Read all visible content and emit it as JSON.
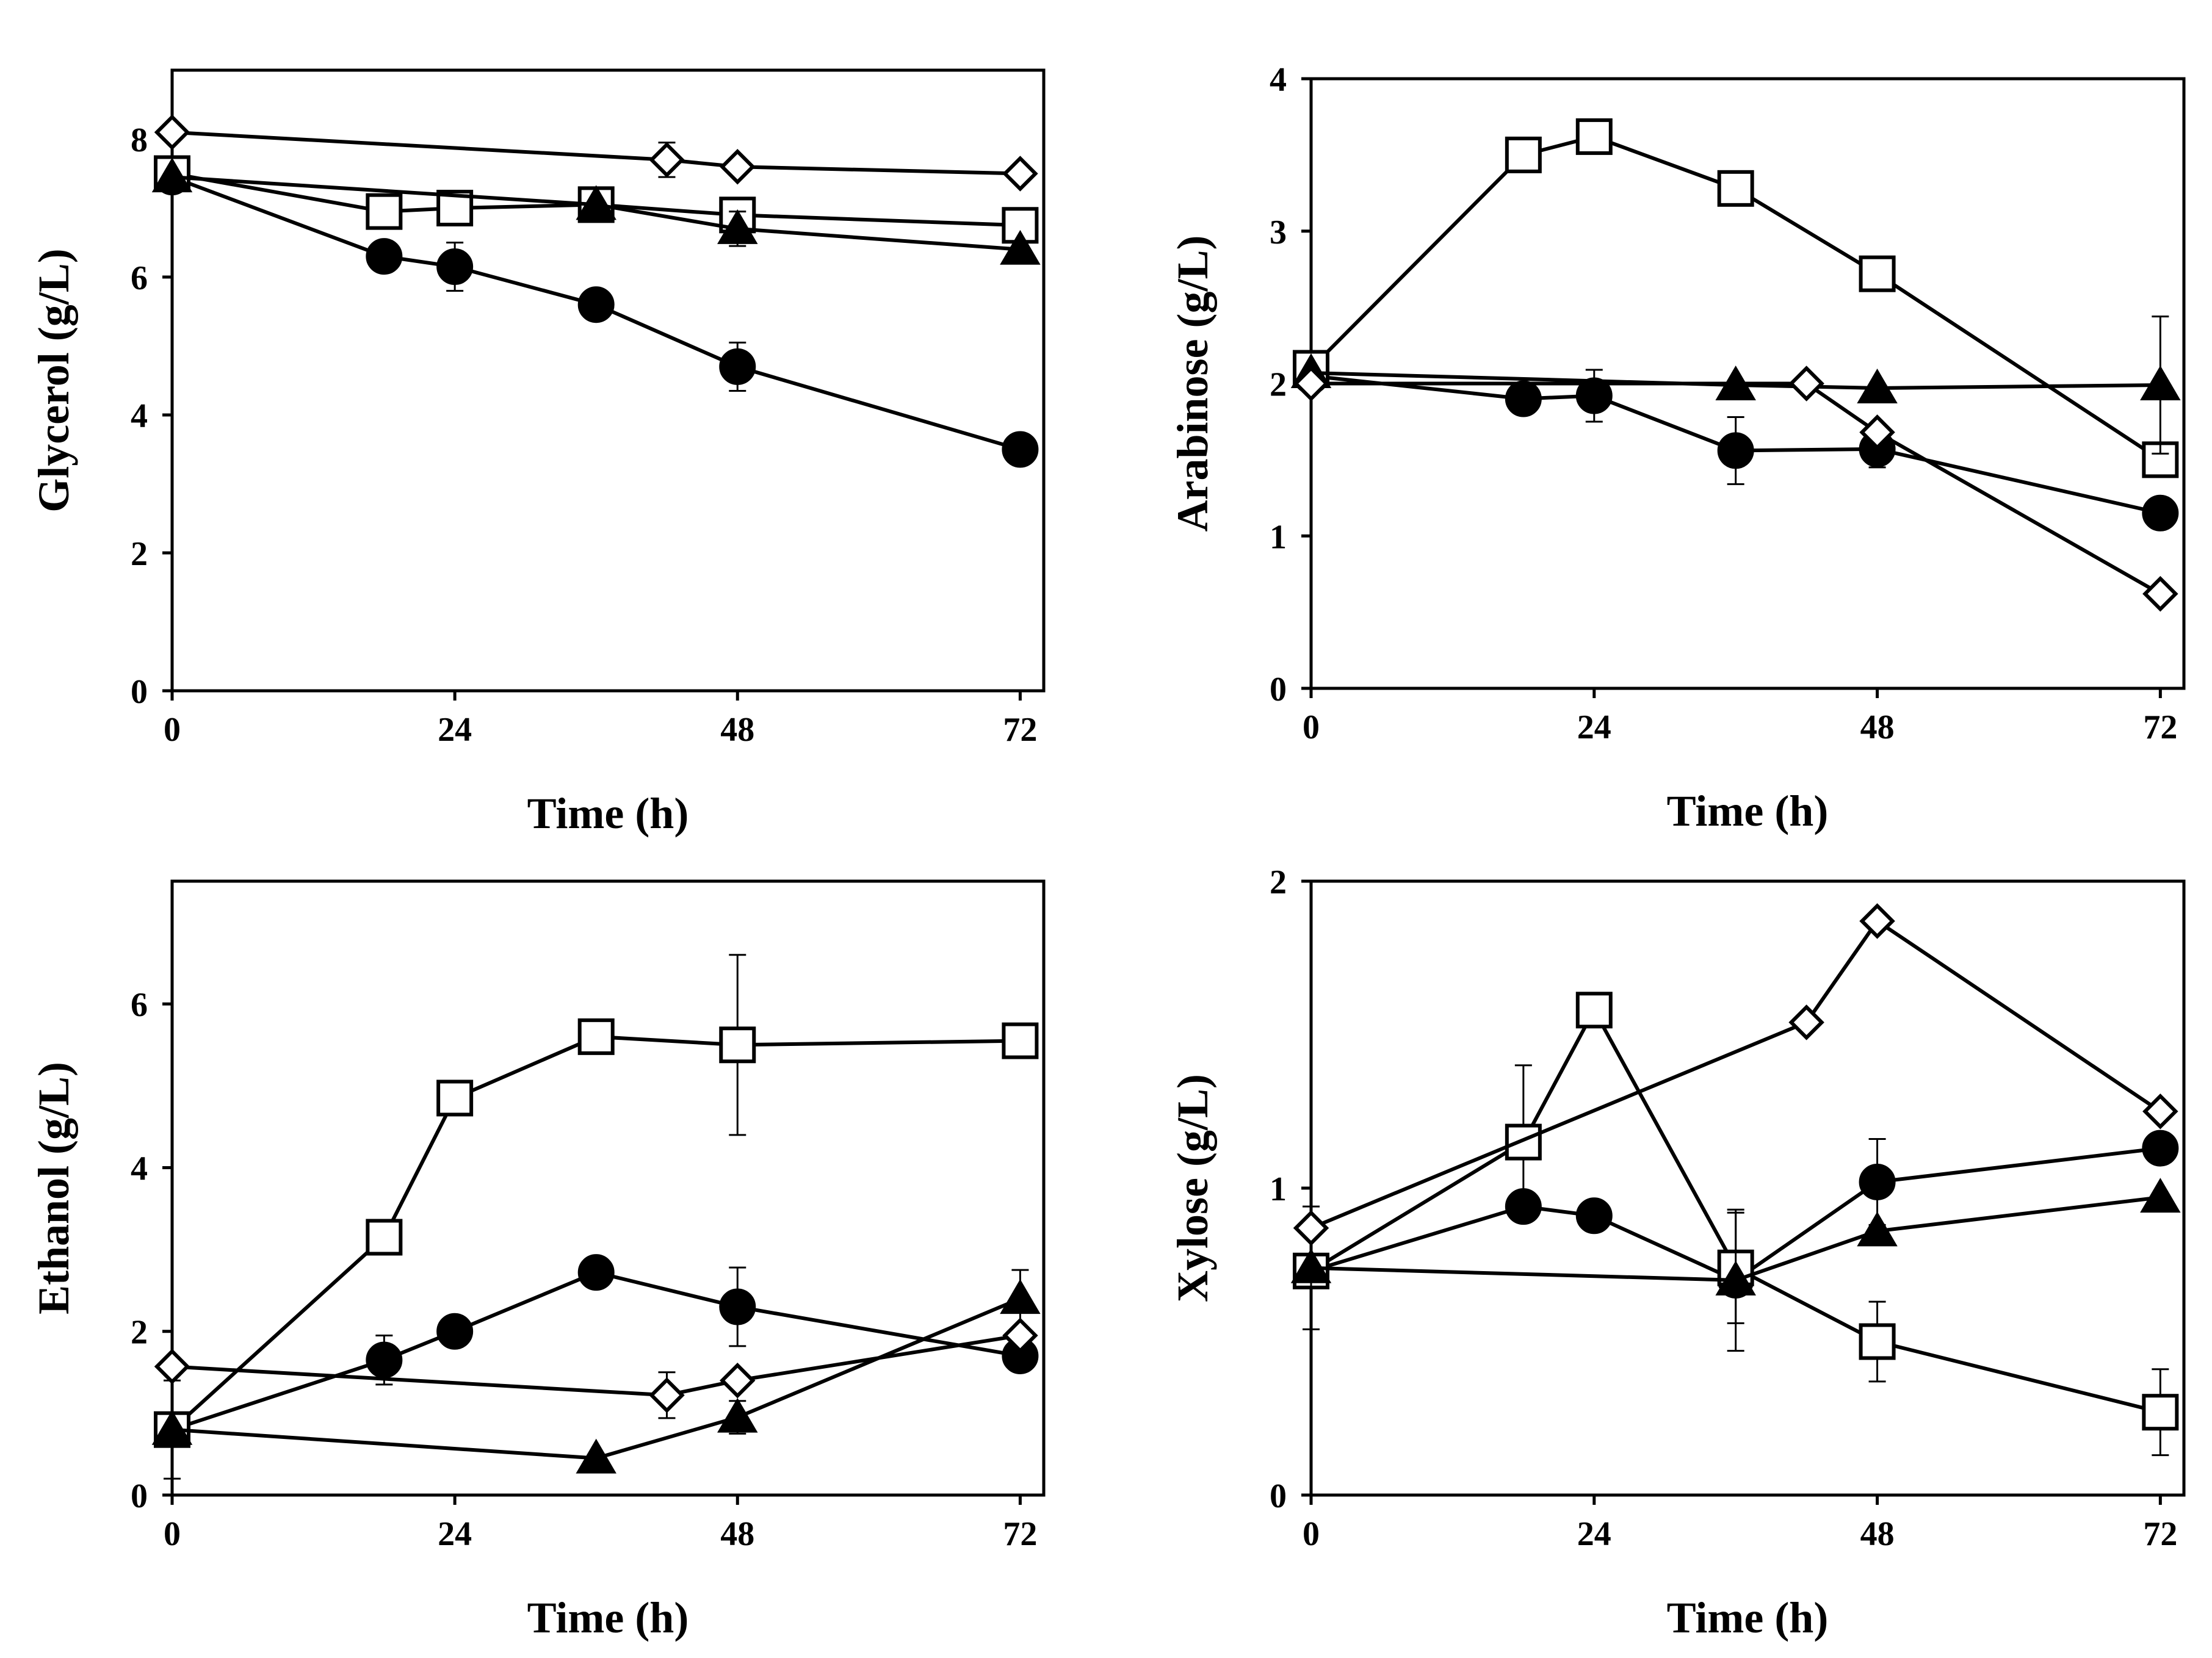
{
  "chart_data": [
    {
      "id": "glycerol",
      "type": "line",
      "xlabel": "Time (h)",
      "ylabel": "Glycerol (g/L)",
      "xlim": [
        0,
        74
      ],
      "ylim": [
        0,
        9
      ],
      "xticks": [
        0,
        24,
        48,
        72
      ],
      "yticks": [
        0,
        2,
        4,
        6,
        8
      ],
      "grid": false,
      "series": [
        {
          "marker": "circle",
          "x": [
            0,
            18,
            24,
            36,
            48,
            72
          ],
          "y": [
            7.45,
            6.3,
            6.15,
            5.6,
            4.7,
            3.5
          ],
          "err": [
            0,
            0.15,
            0.35,
            0,
            0.35,
            0
          ]
        },
        {
          "marker": "square",
          "x": [
            0,
            18,
            24,
            36,
            48,
            72
          ],
          "y": [
            7.5,
            6.95,
            7.0,
            7.05,
            6.9,
            6.75
          ],
          "err": [
            0,
            0,
            0,
            0,
            0.2,
            0
          ]
        },
        {
          "marker": "triangle",
          "x": [
            0,
            36,
            48,
            72
          ],
          "y": [
            7.45,
            7.05,
            6.7,
            6.4
          ],
          "err": [
            0,
            0,
            0.25,
            0
          ]
        },
        {
          "marker": "diamond",
          "x": [
            0,
            42,
            48,
            72
          ],
          "y": [
            8.1,
            7.7,
            7.6,
            7.5
          ],
          "err": [
            0,
            0.25,
            0,
            0
          ]
        }
      ]
    },
    {
      "id": "arabinose",
      "type": "line",
      "xlabel": "Time (h)",
      "ylabel": "Arabinose (g/L)",
      "xlim": [
        0,
        74
      ],
      "ylim": [
        0,
        4
      ],
      "xticks": [
        0,
        24,
        48,
        72
      ],
      "yticks": [
        0,
        1,
        2,
        3,
        4
      ],
      "grid": false,
      "series": [
        {
          "marker": "circle",
          "x": [
            0,
            18,
            24,
            36,
            48,
            72
          ],
          "y": [
            2.05,
            1.9,
            1.92,
            1.56,
            1.57,
            1.15
          ],
          "err": [
            0,
            0,
            0.17,
            0.22,
            0.12,
            0
          ]
        },
        {
          "marker": "square",
          "x": [
            0,
            18,
            24,
            36,
            48,
            72
          ],
          "y": [
            2.1,
            3.5,
            3.62,
            3.28,
            2.72,
            1.5
          ],
          "err": [
            0,
            0,
            0,
            0,
            0,
            0
          ]
        },
        {
          "marker": "triangle",
          "x": [
            0,
            36,
            48,
            72
          ],
          "y": [
            2.07,
            1.99,
            1.97,
            1.99
          ],
          "err": [
            0,
            0,
            0,
            0.45
          ]
        },
        {
          "marker": "diamond",
          "x": [
            0,
            42,
            48,
            72
          ],
          "y": [
            2.0,
            2.0,
            1.68,
            0.62
          ],
          "err": [
            0,
            0,
            0,
            0
          ]
        }
      ]
    },
    {
      "id": "ethanol",
      "type": "line",
      "xlabel": "Time (h)",
      "ylabel": "Ethanol (g/L)",
      "xlim": [
        0,
        74
      ],
      "ylim": [
        0,
        7.5
      ],
      "xticks": [
        0,
        24,
        48,
        72
      ],
      "yticks": [
        0,
        2,
        4,
        6
      ],
      "grid": false,
      "series": [
        {
          "marker": "circle",
          "x": [
            0,
            18,
            24,
            36,
            48,
            72
          ],
          "y": [
            0.8,
            1.65,
            2.0,
            2.72,
            2.3,
            1.7
          ],
          "err": [
            0,
            0.3,
            0,
            0,
            0.48,
            0
          ]
        },
        {
          "marker": "square",
          "x": [
            0,
            18,
            24,
            36,
            48,
            72
          ],
          "y": [
            0.8,
            3.15,
            4.85,
            5.6,
            5.5,
            5.55
          ],
          "err": [
            0.6,
            0,
            0,
            0,
            1.1,
            0
          ]
        },
        {
          "marker": "triangle",
          "x": [
            0,
            36,
            48,
            72
          ],
          "y": [
            0.8,
            0.45,
            0.95,
            2.4
          ],
          "err": [
            0,
            0,
            0.2,
            0.35
          ]
        },
        {
          "marker": "diamond",
          "x": [
            0,
            42,
            48,
            72
          ],
          "y": [
            1.57,
            1.22,
            1.4,
            1.95
          ],
          "err": [
            0,
            0.28,
            0,
            0
          ]
        }
      ]
    },
    {
      "id": "xylose",
      "type": "line",
      "xlabel": "Time (h)",
      "ylabel": "Xylose (g/L)",
      "xlim": [
        0,
        74
      ],
      "ylim": [
        0,
        2
      ],
      "xticks": [
        0,
        24,
        48,
        72
      ],
      "yticks": [
        0,
        1,
        2
      ],
      "grid": false,
      "series": [
        {
          "marker": "circle",
          "x": [
            0,
            18,
            24,
            36,
            48,
            72
          ],
          "y": [
            0.73,
            0.94,
            0.91,
            0.7,
            1.02,
            1.13
          ],
          "err": [
            0,
            0,
            0,
            0,
            0.14,
            0
          ]
        },
        {
          "marker": "square",
          "x": [
            0,
            18,
            24,
            36,
            48,
            72
          ],
          "y": [
            0.73,
            1.15,
            1.58,
            0.74,
            0.5,
            0.27
          ],
          "err": [
            0,
            0.25,
            0,
            0.18,
            0.13,
            0.14
          ]
        },
        {
          "marker": "triangle",
          "x": [
            0,
            36,
            48,
            72
          ],
          "y": [
            0.74,
            0.7,
            0.86,
            0.97
          ],
          "err": [
            0.2,
            0.23,
            0,
            0
          ]
        },
        {
          "marker": "diamond",
          "x": [
            0,
            42,
            48,
            72
          ],
          "y": [
            0.87,
            1.54,
            1.87,
            1.25
          ],
          "err": [
            0,
            0,
            0,
            0
          ]
        }
      ]
    }
  ]
}
